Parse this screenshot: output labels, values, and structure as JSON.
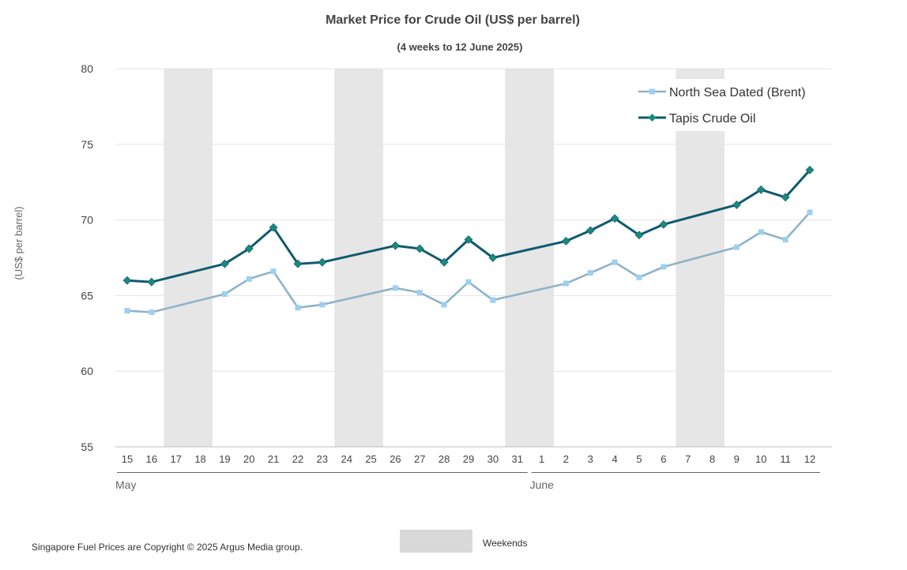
{
  "chart_data": {
    "type": "line",
    "title": "Market Price for Crude Oil (US$ per barrel)",
    "subtitle": "(4 weeks to 12 June 2025)",
    "ylabel": "(US$ per barrel)",
    "ylim": [
      55,
      80
    ],
    "yticks": [
      55,
      60,
      65,
      70,
      75,
      80
    ],
    "grid": true,
    "legend_position": "top-right",
    "categories": [
      "15",
      "16",
      "17",
      "18",
      "19",
      "20",
      "21",
      "22",
      "23",
      "24",
      "25",
      "26",
      "27",
      "28",
      "29",
      "30",
      "31",
      "1",
      "2",
      "3",
      "4",
      "5",
      "6",
      "7",
      "8",
      "9",
      "10",
      "11",
      "12"
    ],
    "month_labels": [
      {
        "label": "May",
        "start_category": "15",
        "end_category": "31"
      },
      {
        "label": "June",
        "start_category": "1",
        "end_category": "12"
      }
    ],
    "weekends": [
      [
        "17",
        "18"
      ],
      [
        "24",
        "25"
      ],
      [
        "31",
        "1"
      ],
      [
        "7",
        "8"
      ]
    ],
    "weekend_legend_label": "Weekends",
    "series": [
      {
        "name": "North Sea Dated (Brent)",
        "color": "#8fb3c6",
        "marker": "square",
        "marker_color": "#9dd0f0",
        "values": [
          64.0,
          63.9,
          null,
          null,
          65.1,
          66.1,
          66.6,
          64.2,
          64.4,
          null,
          null,
          65.5,
          65.2,
          64.4,
          65.9,
          64.7,
          null,
          null,
          65.8,
          66.5,
          67.2,
          66.2,
          66.9,
          null,
          null,
          68.2,
          69.2,
          68.7,
          70.5
        ]
      },
      {
        "name": "Tapis Crude Oil",
        "color": "#0f5a6e",
        "marker": "diamond",
        "marker_color": "#1a8a7e",
        "values": [
          66.0,
          65.9,
          null,
          null,
          67.1,
          68.1,
          69.5,
          67.1,
          67.2,
          null,
          null,
          68.3,
          68.1,
          67.2,
          68.7,
          67.5,
          null,
          null,
          68.6,
          69.3,
          70.1,
          69.0,
          69.7,
          null,
          null,
          71.0,
          72.0,
          71.5,
          73.3
        ]
      }
    ]
  },
  "footer": {
    "copyright": "Singapore Fuel Prices are Copyright © 2025 Argus Media group."
  }
}
